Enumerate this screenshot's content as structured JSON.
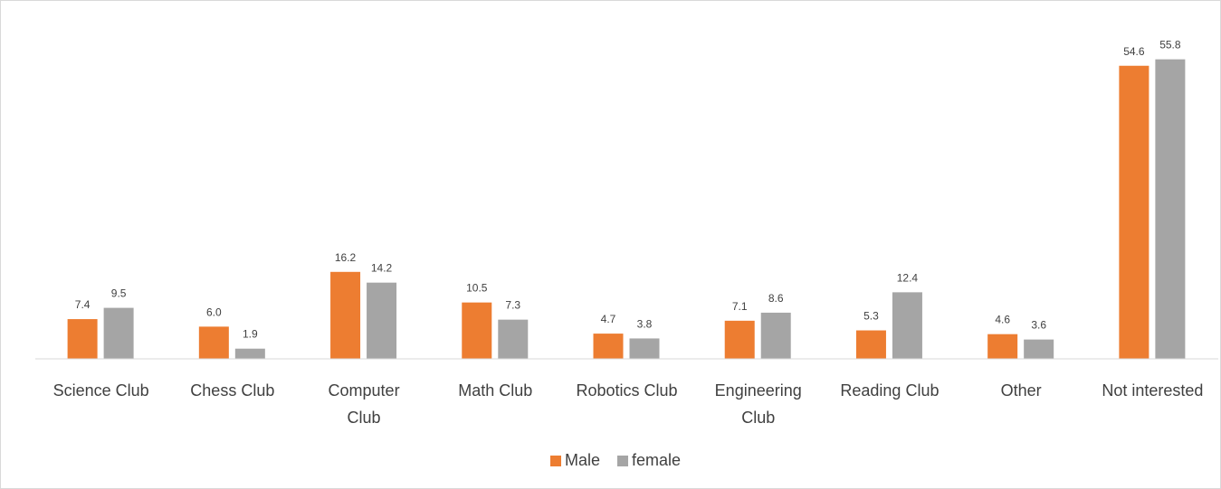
{
  "chart_data": {
    "type": "bar",
    "categories": [
      "Science Club",
      "Chess Club",
      "Computer Club",
      "Math Club",
      "Robotics Club",
      "Engineering Club",
      "Reading Club",
      "Other",
      "Not interested"
    ],
    "series": [
      {
        "name": "Male",
        "color": "#ed7d31",
        "values": [
          7.4,
          6.0,
          16.2,
          10.5,
          4.7,
          7.1,
          5.3,
          4.6,
          54.6
        ],
        "value_labels": [
          "7.4",
          "6.0",
          "16.2",
          "10.5",
          "4.7",
          "7.1",
          "5.3",
          "4.6",
          "54.6"
        ]
      },
      {
        "name": "female",
        "color": "#a5a5a5",
        "values": [
          9.5,
          1.9,
          14.2,
          7.3,
          3.8,
          8.6,
          12.4,
          3.6,
          55.8
        ],
        "value_labels": [
          "9.5",
          "1.9",
          "14.2",
          "7.3",
          "3.8",
          "8.6",
          "12.4",
          "3.6",
          "55.8"
        ]
      }
    ],
    "ylim": [
      0,
      65
    ],
    "grid": false,
    "legend": "bottom"
  }
}
